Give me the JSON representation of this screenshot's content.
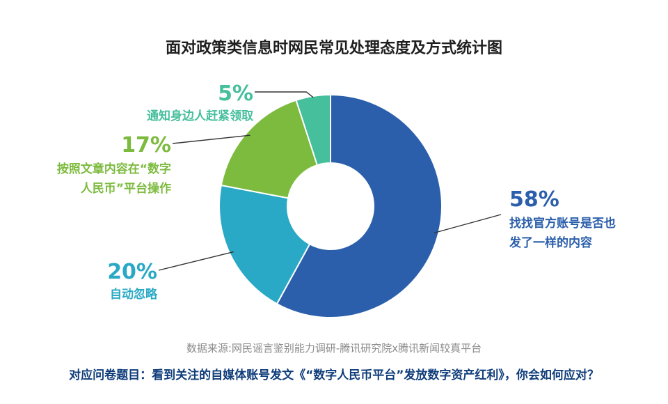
{
  "chart_data": {
    "type": "pie",
    "title": "面对政策类信息时网民常见处理态度及方式统计图",
    "categories": [
      "找找官方账号是否也发了一样的内容",
      "自动忽略",
      "按照文章内容在“数字人民币”平台操作",
      "通知身边人赶紧领取"
    ],
    "values": [
      58,
      20,
      17,
      5
    ],
    "value_labels": [
      "58%",
      "20%",
      "17%",
      "5%"
    ],
    "label_lines": [
      [
        "找找官方账号是否也",
        "发了一样的内容"
      ],
      [
        "自动忽略"
      ],
      [
        "按照文章内容在“数字",
        "人民币”平台操作"
      ],
      [
        "通知身边人赶紧领取"
      ]
    ],
    "colors": [
      "#2b5fab",
      "#29a9c5",
      "#7cbb3e",
      "#45bf9c"
    ],
    "legend": "none",
    "grid": false
  },
  "footer": {
    "source": "数据来源:网民谣言鉴别能力调研-腾讯研究院x腾讯新闻较真平台",
    "question": "对应问卷题目：看到关注的自媒体账号发文《“数字人民币平台”发放数字资产红利》，你会如何应对？"
  }
}
